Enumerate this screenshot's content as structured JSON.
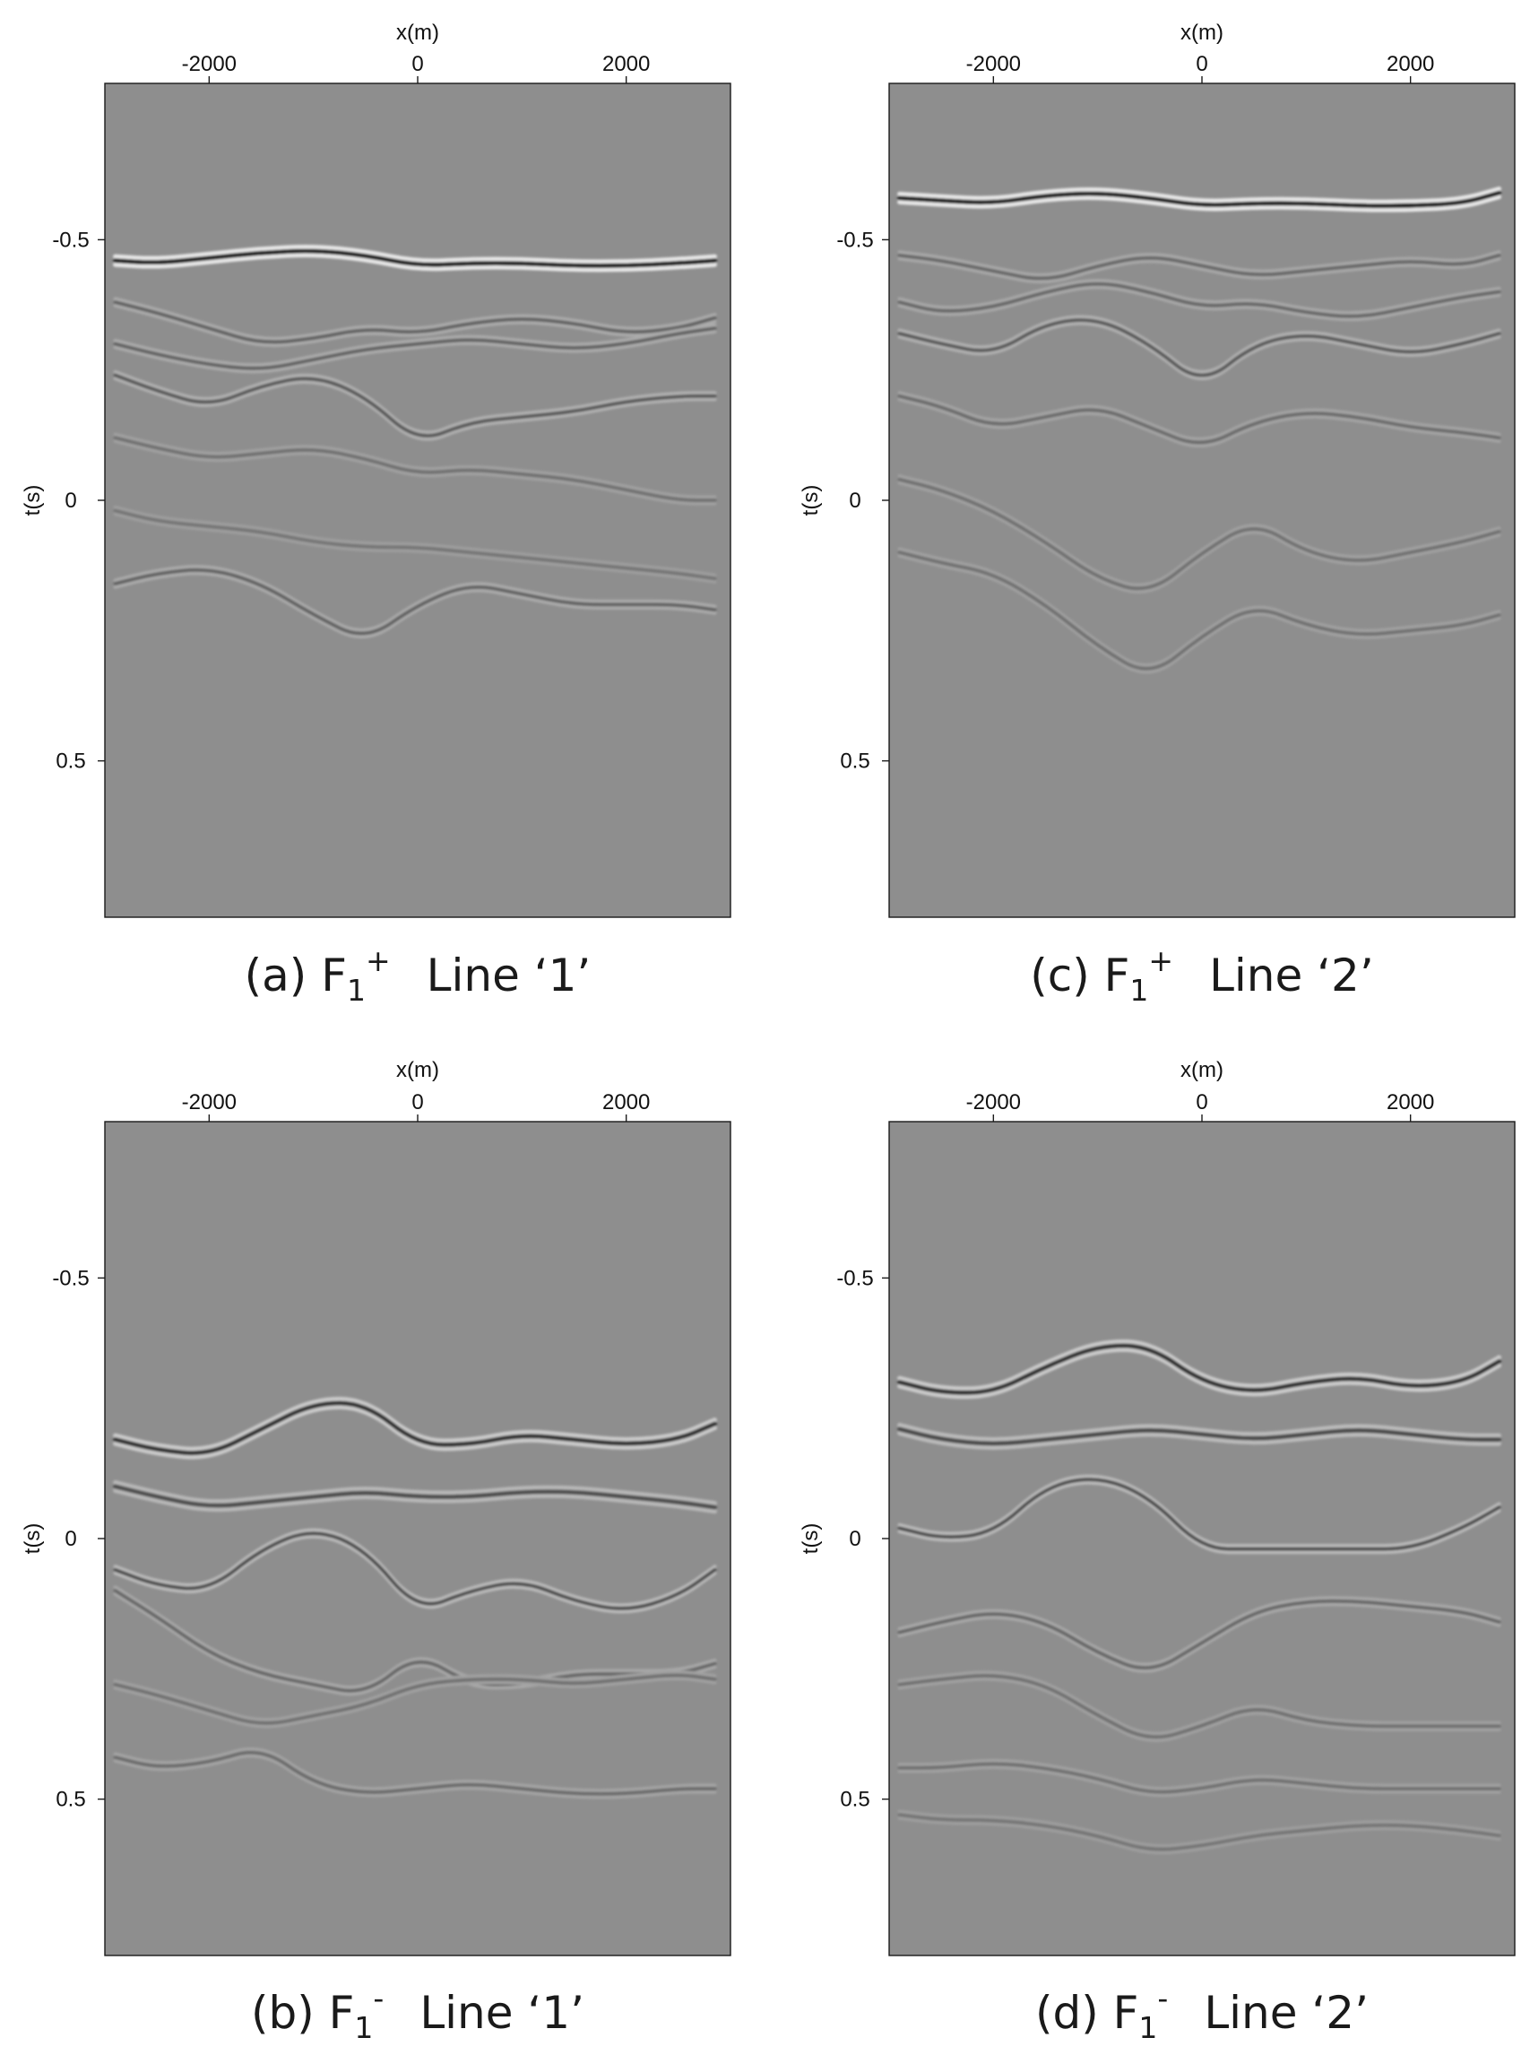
{
  "figure": {
    "panels": [
      {
        "id": "a",
        "caption": {
          "prefix": "(a) F",
          "sub": "1",
          "sup": "+",
          "line": "Line ‘1’"
        }
      },
      {
        "id": "c",
        "caption": {
          "prefix": "(c) F",
          "sub": "1",
          "sup": "+",
          "line": "Line ‘2’"
        }
      },
      {
        "id": "b",
        "caption": {
          "prefix": "(b) F",
          "sub": "1",
          "sup": "-",
          "line": "Line ‘1’"
        }
      },
      {
        "id": "d",
        "caption": {
          "prefix": "(d) F",
          "sub": "1",
          "sup": "-",
          "line": "Line ‘2’"
        }
      }
    ]
  },
  "chart_data": [
    {
      "type": "heatmap",
      "panel": "a",
      "xlabel": "x(m)",
      "ylabel": "t(s)",
      "xlim": [
        -3000,
        3000
      ],
      "ylim": [
        -0.8,
        0.8
      ],
      "y_inverted": true,
      "xticks": [
        -2000,
        0,
        2000
      ],
      "xtick_labels": [
        "-2000",
        "0",
        "2000"
      ],
      "yticks": [
        -0.5,
        0,
        0.5
      ],
      "ytick_labels": [
        "-0.5",
        "0",
        "0.5"
      ],
      "colormap": "seismic gray",
      "background": "#8e8e8e",
      "x": [
        -2900,
        -2500,
        -2000,
        -1500,
        -1000,
        -500,
        0,
        500,
        1000,
        1500,
        2000,
        2500,
        2850
      ],
      "events": [
        {
          "name": "direct",
          "strength": 2.8,
          "width": 5,
          "t": [
            -0.46,
            -0.455,
            -0.465,
            -0.475,
            -0.48,
            -0.47,
            -0.45,
            -0.455,
            -0.455,
            -0.45,
            -0.45,
            -0.455,
            -0.46
          ]
        },
        {
          "name": "r1",
          "strength": 0.9,
          "width": 4,
          "t": [
            -0.38,
            -0.36,
            -0.33,
            -0.3,
            -0.31,
            -0.33,
            -0.32,
            -0.34,
            -0.35,
            -0.34,
            -0.32,
            -0.33,
            -0.35
          ]
        },
        {
          "name": "r2",
          "strength": 0.9,
          "width": 4,
          "t": [
            -0.3,
            -0.28,
            -0.26,
            -0.25,
            -0.27,
            -0.29,
            -0.3,
            -0.31,
            -0.3,
            -0.29,
            -0.3,
            -0.32,
            -0.33
          ]
        },
        {
          "name": "r3",
          "strength": 1.1,
          "width": 4,
          "t": [
            -0.24,
            -0.21,
            -0.18,
            -0.22,
            -0.24,
            -0.2,
            -0.11,
            -0.15,
            -0.16,
            -0.17,
            -0.19,
            -0.2,
            -0.2
          ]
        },
        {
          "name": "r4",
          "strength": 0.6,
          "width": 4,
          "t": [
            -0.12,
            -0.1,
            -0.08,
            -0.09,
            -0.1,
            -0.08,
            -0.05,
            -0.06,
            -0.05,
            -0.04,
            -0.02,
            0.0,
            0.0
          ]
        },
        {
          "name": "r5",
          "strength": 0.5,
          "width": 4,
          "t": [
            0.02,
            0.04,
            0.05,
            0.06,
            0.08,
            0.09,
            0.09,
            0.1,
            0.11,
            0.12,
            0.13,
            0.14,
            0.15
          ]
        },
        {
          "name": "r6",
          "strength": 0.9,
          "width": 4,
          "t": [
            0.16,
            0.14,
            0.13,
            0.16,
            0.22,
            0.27,
            0.2,
            0.16,
            0.18,
            0.2,
            0.2,
            0.2,
            0.21
          ]
        }
      ]
    },
    {
      "type": "heatmap",
      "panel": "c",
      "xlabel": "x(m)",
      "ylabel": "t(s)",
      "xlim": [
        -3000,
        3000
      ],
      "ylim": [
        -0.8,
        0.8
      ],
      "y_inverted": true,
      "xticks": [
        -2000,
        0,
        2000
      ],
      "xtick_labels": [
        "-2000",
        "0",
        "2000"
      ],
      "yticks": [
        -0.5,
        0,
        0.5
      ],
      "ytick_labels": [
        "-0.5",
        "0",
        "0.5"
      ],
      "colormap": "seismic gray",
      "background": "#8e8e8e",
      "x": [
        -2900,
        -2500,
        -2000,
        -1500,
        -1000,
        -500,
        0,
        500,
        1000,
        1500,
        2000,
        2500,
        2850
      ],
      "events": [
        {
          "name": "direct",
          "strength": 2.8,
          "width": 5,
          "t": [
            -0.58,
            -0.575,
            -0.57,
            -0.585,
            -0.59,
            -0.58,
            -0.565,
            -0.57,
            -0.57,
            -0.565,
            -0.565,
            -0.57,
            -0.59
          ]
        },
        {
          "name": "r1",
          "strength": 0.8,
          "width": 4,
          "t": [
            -0.47,
            -0.46,
            -0.44,
            -0.42,
            -0.45,
            -0.47,
            -0.45,
            -0.43,
            -0.44,
            -0.45,
            -0.46,
            -0.45,
            -0.47
          ]
        },
        {
          "name": "r2",
          "strength": 0.8,
          "width": 4,
          "t": [
            -0.38,
            -0.36,
            -0.37,
            -0.4,
            -0.42,
            -0.4,
            -0.37,
            -0.38,
            -0.36,
            -0.35,
            -0.37,
            -0.39,
            -0.4
          ]
        },
        {
          "name": "r3",
          "strength": 1.1,
          "width": 4,
          "t": [
            -0.32,
            -0.3,
            -0.28,
            -0.34,
            -0.35,
            -0.3,
            -0.22,
            -0.3,
            -0.32,
            -0.3,
            -0.28,
            -0.3,
            -0.32
          ]
        },
        {
          "name": "r4",
          "strength": 0.7,
          "width": 4,
          "t": [
            -0.2,
            -0.18,
            -0.14,
            -0.16,
            -0.18,
            -0.14,
            -0.1,
            -0.15,
            -0.17,
            -0.16,
            -0.14,
            -0.13,
            -0.12
          ]
        },
        {
          "name": "r5",
          "strength": 0.6,
          "width": 4,
          "t": [
            -0.04,
            -0.02,
            0.02,
            0.08,
            0.15,
            0.18,
            0.1,
            0.04,
            0.1,
            0.12,
            0.1,
            0.08,
            0.06
          ]
        },
        {
          "name": "r6",
          "strength": 0.6,
          "width": 4,
          "t": [
            0.1,
            0.12,
            0.14,
            0.2,
            0.28,
            0.34,
            0.26,
            0.2,
            0.24,
            0.26,
            0.25,
            0.24,
            0.22
          ]
        }
      ]
    },
    {
      "type": "heatmap",
      "panel": "b",
      "xlabel": "x(m)",
      "ylabel": "t(s)",
      "xlim": [
        -3000,
        3000
      ],
      "ylim": [
        -0.8,
        0.8
      ],
      "y_inverted": true,
      "xticks": [
        -2000,
        0,
        2000
      ],
      "xtick_labels": [
        "-2000",
        "0",
        "2000"
      ],
      "yticks": [
        -0.5,
        0,
        0.5
      ],
      "ytick_labels": [
        "-0.5",
        "0",
        "0.5"
      ],
      "colormap": "seismic gray",
      "background": "#8e8e8e",
      "x": [
        -2900,
        -2500,
        -2000,
        -1500,
        -1000,
        -500,
        0,
        500,
        1000,
        1500,
        2000,
        2500,
        2850
      ],
      "events": [
        {
          "name": "r1",
          "strength": 1.9,
          "width": 5,
          "t": [
            -0.19,
            -0.17,
            -0.16,
            -0.21,
            -0.26,
            -0.26,
            -0.18,
            -0.18,
            -0.2,
            -0.19,
            -0.18,
            -0.19,
            -0.22
          ]
        },
        {
          "name": "r2",
          "strength": 1.3,
          "width": 5,
          "t": [
            -0.1,
            -0.08,
            -0.06,
            -0.07,
            -0.08,
            -0.09,
            -0.08,
            -0.08,
            -0.09,
            -0.09,
            -0.08,
            -0.07,
            -0.06
          ]
        },
        {
          "name": "r3",
          "strength": 1.4,
          "width": 4,
          "t": [
            0.06,
            0.09,
            0.1,
            0.02,
            -0.02,
            0.02,
            0.14,
            0.1,
            0.08,
            0.12,
            0.14,
            0.11,
            0.06
          ]
        },
        {
          "name": "r4",
          "strength": 0.8,
          "width": 4,
          "t": [
            0.1,
            0.15,
            0.22,
            0.26,
            0.28,
            0.3,
            0.22,
            0.28,
            0.28,
            0.26,
            0.26,
            0.26,
            0.24
          ]
        },
        {
          "name": "r5",
          "strength": 0.6,
          "width": 4,
          "t": [
            0.28,
            0.3,
            0.33,
            0.36,
            0.34,
            0.32,
            0.28,
            0.27,
            0.27,
            0.28,
            0.27,
            0.26,
            0.27
          ]
        },
        {
          "name": "r6",
          "strength": 0.7,
          "width": 4,
          "t": [
            0.42,
            0.44,
            0.43,
            0.4,
            0.47,
            0.49,
            0.48,
            0.47,
            0.48,
            0.49,
            0.49,
            0.48,
            0.48
          ]
        }
      ]
    },
    {
      "type": "heatmap",
      "panel": "d",
      "xlabel": "x(m)",
      "ylabel": "t(s)",
      "xlim": [
        -3000,
        3000
      ],
      "ylim": [
        -0.8,
        0.8
      ],
      "y_inverted": true,
      "xticks": [
        -2000,
        0,
        2000
      ],
      "xtick_labels": [
        "-2000",
        "0",
        "2000"
      ],
      "yticks": [
        -0.5,
        0,
        0.5
      ],
      "ytick_labels": [
        "-0.5",
        "0",
        "0.5"
      ],
      "colormap": "seismic gray",
      "background": "#8e8e8e",
      "x": [
        -2900,
        -2500,
        -2000,
        -1500,
        -1000,
        -500,
        0,
        500,
        1000,
        1500,
        2000,
        2500,
        2850
      ],
      "events": [
        {
          "name": "r1",
          "strength": 1.9,
          "width": 5,
          "t": [
            -0.3,
            -0.28,
            -0.28,
            -0.33,
            -0.37,
            -0.37,
            -0.3,
            -0.28,
            -0.3,
            -0.31,
            -0.29,
            -0.3,
            -0.34
          ]
        },
        {
          "name": "r2",
          "strength": 1.4,
          "width": 5,
          "t": [
            -0.21,
            -0.19,
            -0.18,
            -0.19,
            -0.2,
            -0.21,
            -0.2,
            -0.19,
            -0.2,
            -0.21,
            -0.2,
            -0.19,
            -0.19
          ]
        },
        {
          "name": "r3",
          "strength": 1.4,
          "width": 4,
          "t": [
            -0.02,
            0.0,
            -0.01,
            -0.1,
            -0.12,
            -0.08,
            0.02,
            0.02,
            0.02,
            0.02,
            0.02,
            -0.02,
            -0.06
          ]
        },
        {
          "name": "r4",
          "strength": 0.8,
          "width": 4,
          "t": [
            0.18,
            0.16,
            0.14,
            0.16,
            0.22,
            0.26,
            0.2,
            0.14,
            0.12,
            0.12,
            0.13,
            0.14,
            0.16
          ]
        },
        {
          "name": "r5",
          "strength": 0.6,
          "width": 4,
          "t": [
            0.28,
            0.27,
            0.26,
            0.28,
            0.34,
            0.39,
            0.36,
            0.32,
            0.35,
            0.36,
            0.36,
            0.36,
            0.36
          ]
        },
        {
          "name": "r6",
          "strength": 0.6,
          "width": 4,
          "t": [
            0.44,
            0.44,
            0.43,
            0.44,
            0.46,
            0.49,
            0.48,
            0.46,
            0.47,
            0.48,
            0.48,
            0.48,
            0.48
          ]
        },
        {
          "name": "r7",
          "strength": 0.5,
          "width": 4,
          "t": [
            0.53,
            0.54,
            0.54,
            0.55,
            0.57,
            0.6,
            0.59,
            0.57,
            0.56,
            0.55,
            0.55,
            0.56,
            0.57
          ]
        }
      ]
    }
  ]
}
